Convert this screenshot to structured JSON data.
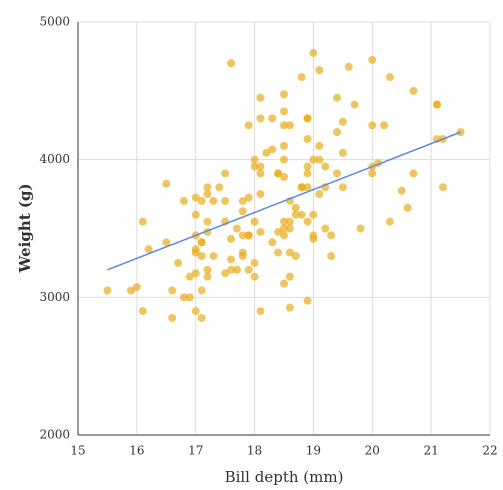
{
  "chart_data": {
    "type": "scatter",
    "x_label": "Bill depth (mm)",
    "y_label": "Weight (g)",
    "color": "#e8ad1c",
    "xlim": [
      15,
      22
    ],
    "xticks": [
      15,
      16,
      17,
      18,
      19,
      20,
      21,
      22
    ],
    "ylim": [
      2000,
      5000
    ],
    "yticks": [
      2000,
      3000,
      4000,
      5000
    ],
    "grid": true,
    "x": [
      15.5,
      15.9,
      16.0,
      16.1,
      16.1,
      16.2,
      16.5,
      16.5,
      16.6,
      16.6,
      16.7,
      16.8,
      16.8,
      16.9,
      16.9,
      17.0,
      17.0,
      17.0,
      17.0,
      17.0,
      17.0,
      17.0,
      17.1,
      17.1,
      17.1,
      17.1,
      17.1,
      17.1,
      17.2,
      17.2,
      17.2,
      17.2,
      17.2,
      17.2,
      17.3,
      17.3,
      17.4,
      17.5,
      17.5,
      17.5,
      17.5,
      17.6,
      17.6,
      17.6,
      17.6,
      17.7,
      17.7,
      17.8,
      17.8,
      17.8,
      17.8,
      17.8,
      17.9,
      17.9,
      17.9,
      17.9,
      17.9,
      18.0,
      18.0,
      18.0,
      18.0,
      18.0,
      18.1,
      18.1,
      18.1,
      18.1,
      18.1,
      18.1,
      18.1,
      18.2,
      18.3,
      18.3,
      18.3,
      18.4,
      18.4,
      18.4,
      18.4,
      18.5,
      18.5,
      18.5,
      18.5,
      18.5,
      18.5,
      18.5,
      18.5,
      18.5,
      18.5,
      18.6,
      18.6,
      18.6,
      18.6,
      18.6,
      18.6,
      18.6,
      18.7,
      18.7,
      18.7,
      18.8,
      18.8,
      18.8,
      18.8,
      18.9,
      18.9,
      18.9,
      18.9,
      18.9,
      18.9,
      18.9,
      18.9,
      19.0,
      19.0,
      19.0,
      19.0,
      19.0,
      19.1,
      19.1,
      19.1,
      19.1,
      19.2,
      19.2,
      19.2,
      19.3,
      19.3,
      19.4,
      19.4,
      19.4,
      19.5,
      19.5,
      19.5,
      19.6,
      19.7,
      19.8,
      20.0,
      20.0,
      20.0,
      20.0,
      20.1,
      20.2,
      20.3,
      20.3,
      20.5,
      20.6,
      20.7,
      20.7,
      21.1,
      21.1,
      21.1,
      21.2,
      21.2,
      21.5
    ],
    "values": [
      3050,
      3050,
      3075,
      2900,
      3550,
      3350,
      3825,
      3400,
      3050,
      2850,
      3250,
      3700,
      3000,
      3150,
      3000,
      3725,
      3600,
      3450,
      3350,
      3325,
      3175,
      2900,
      3400,
      3400,
      3300,
      3700,
      3050,
      2850,
      3800,
      3750,
      3550,
      3475,
      3200,
      3150,
      3700,
      3300,
      3800,
      3900,
      3700,
      3550,
      3175,
      4700,
      3425,
      3275,
      3200,
      3500,
      3200,
      3700,
      3625,
      3450,
      3325,
      3300,
      4250,
      3725,
      3450,
      3450,
      3200,
      4000,
      3950,
      3550,
      3250,
      3150,
      4450,
      4300,
      3950,
      3900,
      3750,
      3475,
      2900,
      4050,
      4300,
      4075,
      3400,
      3900,
      3900,
      3475,
      3325,
      4475,
      4350,
      4250,
      4100,
      4000,
      3875,
      3550,
      3500,
      3450,
      3100,
      4250,
      3700,
      3550,
      3500,
      3325,
      3150,
      2925,
      3650,
      3600,
      3300,
      4600,
      3800,
      3800,
      3600,
      4300,
      4300,
      4150,
      3950,
      3900,
      3800,
      3550,
      2975,
      4775,
      4000,
      3600,
      3450,
      3425,
      4650,
      4100,
      4000,
      3750,
      3950,
      3800,
      3500,
      3450,
      3300,
      4450,
      4200,
      3900,
      4275,
      4050,
      3800,
      4675,
      4400,
      3500,
      4725,
      4250,
      3950,
      3900,
      3975,
      4250,
      4600,
      3550,
      3775,
      3650,
      4500,
      3900,
      4400,
      4400,
      4150,
      4150,
      3800,
      4200
    ],
    "trendline": {
      "color": "#5b8ae0",
      "x": [
        15.5,
        21.5
      ],
      "values": [
        3200,
        4200
      ]
    }
  }
}
